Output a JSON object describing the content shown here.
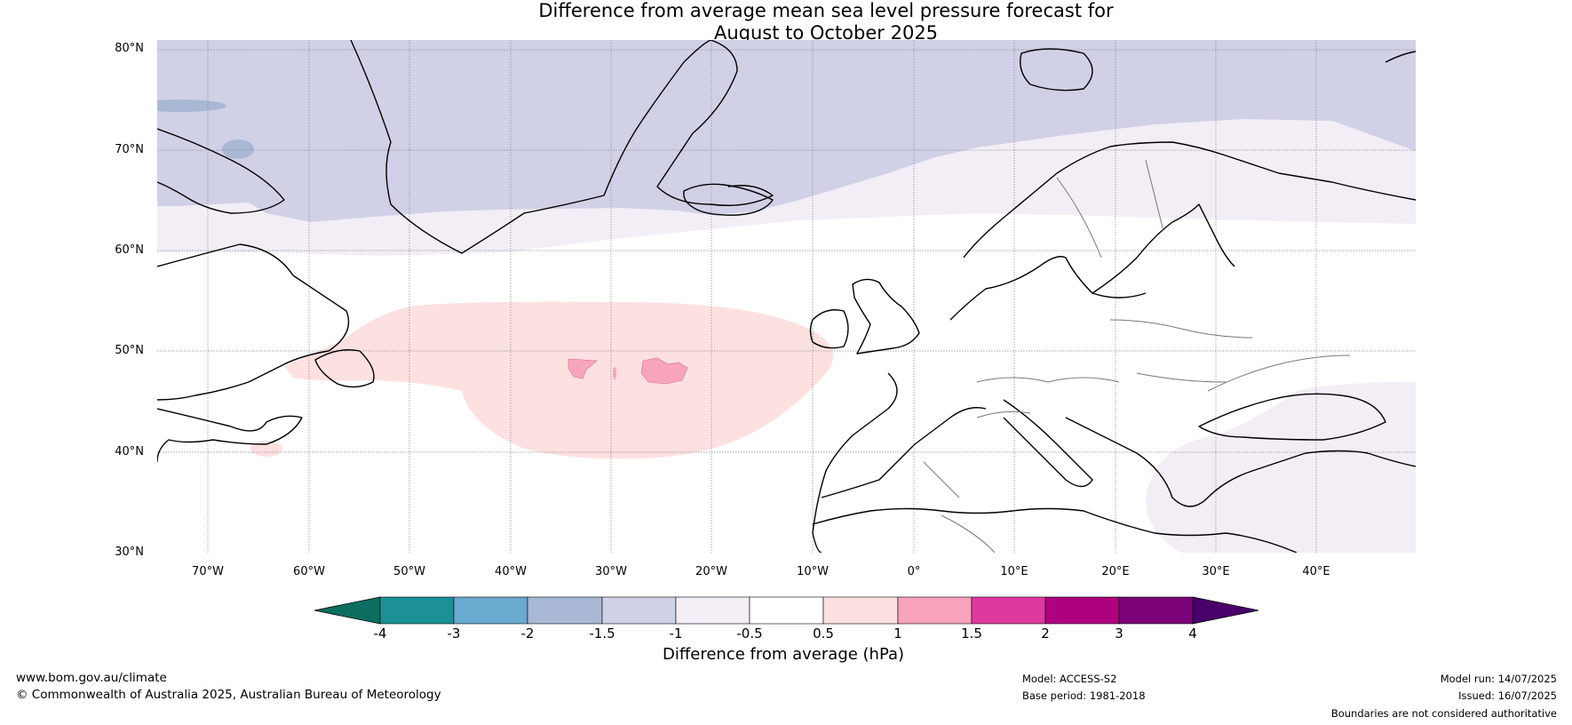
{
  "title_line1": "Difference from average mean sea level pressure forecast for",
  "title_line2": "August to October 2025",
  "lat_labels": [
    "80°N",
    "70°N",
    "60°N",
    "50°N",
    "40°N",
    "30°N"
  ],
  "lon_labels": [
    "70°W",
    "60°W",
    "50°W",
    "40°W",
    "30°W",
    "20°W",
    "10°W",
    "0°",
    "10°E",
    "20°E",
    "30°E",
    "40°E"
  ],
  "colorbar": {
    "ticks": [
      "-4",
      "-3",
      "-2",
      "-1.5",
      "-1",
      "-0.5",
      "0.5",
      "1",
      "1.5",
      "2",
      "3",
      "4"
    ],
    "colors": {
      "below_-4": "#0b6e61",
      "-4_-3": "#1b9095",
      "-3_-2": "#6aa9d0",
      "-2_-1.5": "#a9b8d4",
      "-1.5_-1": "#d0d1e6",
      "-1_-0.5": "#f3eef6",
      "-0.5_0.5": "#ffffff",
      "0.5_1": "#fde0e0",
      "1_1.5": "#f9a4bd",
      "1.5_2": "#e0399e",
      "2_3": "#ae017e",
      "3_4": "#7a0177",
      "above_4": "#49006a"
    },
    "label": "Difference from average (hPa)"
  },
  "footer": {
    "website": "www.bom.gov.au/climate",
    "copyright": "© Commonwealth of Australia 2025, Australian Bureau of Meteorology",
    "model": "Model: ACCESS-S2",
    "base_period": "Base period: 1981-2018",
    "model_run": "Model run: 14/07/2025",
    "issued": "Issued: 16/07/2025",
    "disclaimer": "Boundaries are not considered authoritative"
  }
}
